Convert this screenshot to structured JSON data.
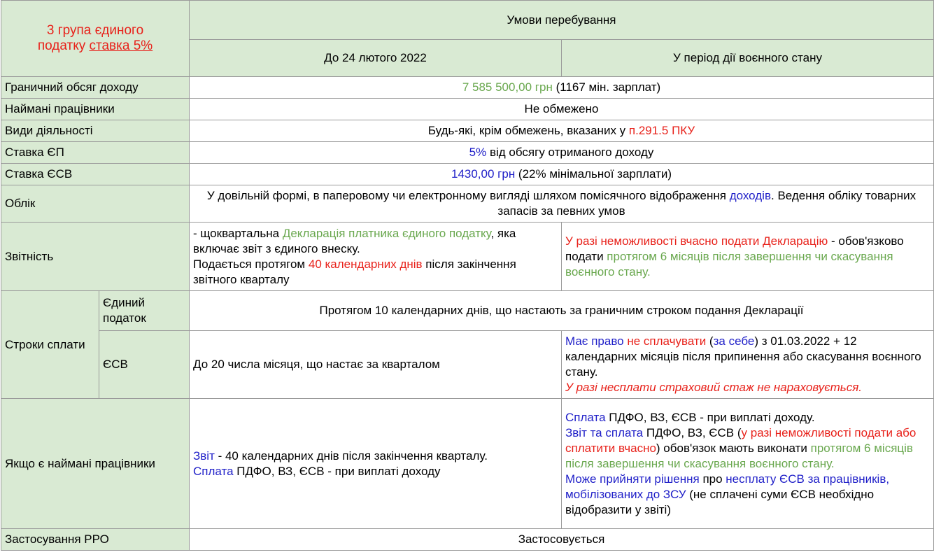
{
  "header": {
    "title_line1": "3 група єдиного",
    "title_line2_a": "податку ",
    "title_line2_b": "ставка 5%",
    "conditions": "Умови перебування",
    "before": "До 24 лютого 2022",
    "war": "У період дії воєнного стану"
  },
  "rows": {
    "income": {
      "label": "Граничний обсяг доходу",
      "v1": "7 585 500,00 грн",
      "v2": " (1167 мін. зарплат)"
    },
    "employees": {
      "label": "Наймані працівники",
      "v1": "Не обмежено"
    },
    "activities": {
      "label": "Види діяльності",
      "v1": "Будь-які, крім обмежень, вказаних у ",
      "v2": "п.291.5 ПКУ"
    },
    "ep_rate": {
      "label": "Ставка ЄП",
      "v1": "5%",
      "v2": " від обсягу отриманого доходу"
    },
    "esv_rate": {
      "label": "Ставка ЄСВ",
      "v1": "1430,00 грн",
      "v2": " (22% мінімальної зарплати)"
    },
    "accounting": {
      "label": "Облік",
      "v1": "У довільній формі, в паперовому чи електронному вигляді шляхом помісячного відображення ",
      "v2": "доходів",
      "v3": ". Ведення обліку товарних запасів за певних умов"
    },
    "reporting": {
      "label": "Звітність",
      "before_1": "- щоквартальна ",
      "before_2": "Декларація платника єдиного податку",
      "before_3": ", яка включає звіт з єдиного внеску.",
      "before_4": "Подається протягом ",
      "before_5": "40 календарних днів",
      "before_6": " після закінчення звітного кварталу",
      "war_1": "У разі неможливості вчасно подати Декларацію",
      "war_2": " - обов'язково подати ",
      "war_3": "протягом 6 місяців після завершення чи скасування воєнного стану."
    },
    "payment": {
      "label": "Строки сплати",
      "single_tax_label": "Єдиний податок",
      "single_tax_value": "Протягом 10 календарних днів, що настають за граничним строком подання Декларації",
      "esv_label": "ЄСВ",
      "esv_before": "До 20 числа місяця, що настає за кварталом",
      "esv_war_1": "Має право",
      "esv_war_2": " ",
      "esv_war_3": "не сплачувати",
      "esv_war_4": " (",
      "esv_war_5": "за себе",
      "esv_war_6": ") з 01.03.2022 + 12 календарних місяців після припинення або скасування воєнного стану.",
      "esv_war_7": "У разі несплати страховий стаж не нараховується."
    },
    "hired": {
      "label": "Якщо є наймані працівники",
      "before_1": "Звіт",
      "before_2": " - 40 календарних днів після закінчення кварталу.",
      "before_3": "Сплата",
      "before_4": " ПДФО, ВЗ, ЄСВ - при виплаті доходу",
      "war_1": "Сплата",
      "war_2": " ПДФО, ВЗ, ЄСВ - при виплаті доходу.",
      "war_3": "Звіт та сплата",
      "war_4": " ПДФО, ВЗ, ЄСВ (",
      "war_5": "у разі неможливості подати або сплатити вчасно",
      "war_6": ") обов'язок мають виконати ",
      "war_7": "протягом 6 місяців після завершення чи скасування воєнного стану.",
      "war_8": "Може прийняти рішення",
      "war_9": " про ",
      "war_10": "несплату ЄСВ за працівників, мобілізованих до ЗСУ",
      "war_11": " (не сплачені суми ЄСВ необхідно відобразити у звіті)"
    },
    "rro": {
      "label": "Застосування РРО",
      "v1": "Застосовується"
    }
  },
  "colors": {
    "header_bg": "#d9ead3",
    "red": "#e8221b",
    "green": "#6aa84f",
    "blue": "#1f1fc8",
    "border": "#9a9a9a"
  }
}
